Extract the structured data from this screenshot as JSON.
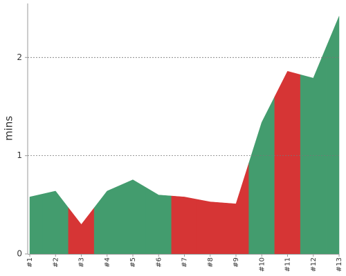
{
  "chart_data": {
    "type": "area",
    "y_label": "mins",
    "categories": [
      "#1",
      "#2",
      "#3",
      "#4",
      "#5",
      "#6",
      "#7",
      "#8",
      "#9",
      "#10",
      "#11",
      "#12",
      "#13"
    ],
    "values": [
      0.58,
      0.64,
      0.3,
      0.64,
      0.755,
      0.6,
      0.58,
      0.53,
      0.51,
      1.34,
      1.86,
      1.79,
      2.42
    ],
    "colors": [
      "#439c6e",
      "#439c6e",
      "#d63535",
      "#439c6e",
      "#439c6e",
      "#439c6e",
      "#d63535",
      "#d63535",
      "#d63535",
      "#439c6e",
      "#d63535",
      "#439c6e",
      "#439c6e"
    ],
    "ylim": [
      0,
      2.55
    ],
    "yticks": [
      0,
      1,
      2
    ],
    "grid": true
  }
}
